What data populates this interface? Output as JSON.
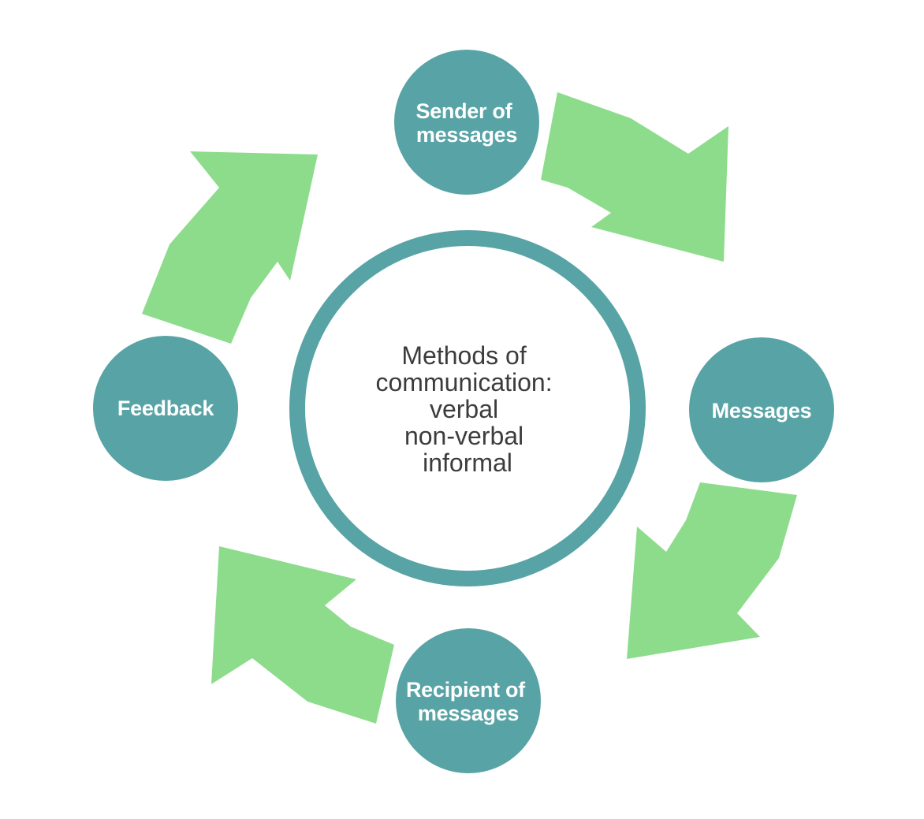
{
  "colors": {
    "arrow": "#8ddc8c",
    "node": "#58a3a5",
    "ring": "#58a3a5",
    "background": "#ffffff",
    "node_text": "#ffffff",
    "center_text": "#3c3c3c"
  },
  "center": {
    "lines": [
      "Methods of",
      "communication:",
      "verbal",
      "non-verbal",
      "informal"
    ]
  },
  "nodes": {
    "sender": {
      "lines": [
        "Sender of",
        "messages"
      ]
    },
    "messages": {
      "lines": [
        "Messages"
      ]
    },
    "recipient": {
      "lines": [
        "Recipient of",
        "messages"
      ]
    },
    "feedback": {
      "lines": [
        "Feedback"
      ]
    }
  }
}
